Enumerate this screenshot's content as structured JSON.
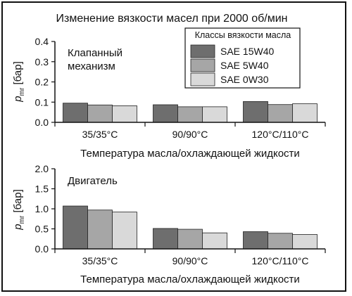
{
  "figure": {
    "title": "Изменение вязкости масел при 2000 об/мин"
  },
  "legend": {
    "title": "Классы вязкости масла",
    "entries": [
      {
        "label": "SAE 15W40",
        "color": "#6e6e6e"
      },
      {
        "label": "SAE 5W40",
        "color": "#a6a6a6"
      },
      {
        "label": "SAE 0W30",
        "color": "#d9d9d9"
      }
    ]
  },
  "chart_data": [
    {
      "type": "bar",
      "annotation": [
        "Клапанный",
        "механизм"
      ],
      "categories": [
        "35/35°C",
        "90/90°C",
        "120°C/110°C"
      ],
      "series": [
        {
          "name": "SAE 15W40",
          "values": [
            0.095,
            0.087,
            0.103
          ],
          "color": "#6e6e6e"
        },
        {
          "name": "SAE 5W40",
          "values": [
            0.086,
            0.077,
            0.088
          ],
          "color": "#a6a6a6"
        },
        {
          "name": "SAE 0W30",
          "values": [
            0.082,
            0.077,
            0.092
          ],
          "color": "#d9d9d9"
        }
      ],
      "xlabel": "Температура масла/охлаждающей жидкости",
      "ylabel": {
        "base": "p",
        "sub": "mr",
        "unit": " [бар]"
      },
      "ylim": [
        0,
        0.4
      ],
      "yticks": [
        "0.0",
        "0.1",
        "0.2",
        "0.3",
        "0.4"
      ],
      "grid": false,
      "legend_position": "top-right"
    },
    {
      "type": "bar",
      "annotation": [
        "Двигатель"
      ],
      "categories": [
        "35/35°C",
        "90/90°C",
        "120°C/110°C"
      ],
      "series": [
        {
          "name": "SAE 15W40",
          "values": [
            1.07,
            0.51,
            0.43
          ],
          "color": "#6e6e6e"
        },
        {
          "name": "SAE 5W40",
          "values": [
            0.97,
            0.49,
            0.39
          ],
          "color": "#a6a6a6"
        },
        {
          "name": "SAE 0W30",
          "values": [
            0.92,
            0.4,
            0.36
          ],
          "color": "#d9d9d9"
        }
      ],
      "xlabel": "Температура масла/охлаждающей жидкости",
      "ylabel": {
        "base": "p",
        "sub": "mr",
        "unit": " [бар]"
      },
      "ylim": [
        0,
        2.0
      ],
      "yticks": [
        "0.0",
        "0.5",
        "1.0",
        "1.5",
        "2.0"
      ],
      "grid": false
    }
  ]
}
